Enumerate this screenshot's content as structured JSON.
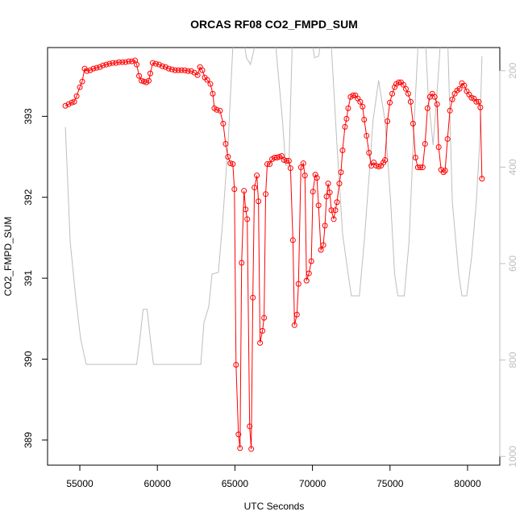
{
  "chart_data": {
    "type": "line",
    "title": "ORCAS RF08 CO2_FMPD_SUM",
    "x_label": "UTC Seconds",
    "y_label": "CO2_FMPD_SUM",
    "xlim": [
      52920,
      82080
    ],
    "ylim": [
      388.69,
      393.85
    ],
    "y2lim": [
      1018,
      152
    ],
    "xticks": [
      55000,
      60000,
      65000,
      70000,
      75000,
      80000
    ],
    "yticks": [
      389,
      390,
      391,
      392,
      393
    ],
    "y2ticks": [
      200,
      400,
      600,
      800,
      1000
    ],
    "series": [
      {
        "color": "#ff0000",
        "markers": true,
        "x": [
          54070,
          54277,
          54483,
          54638,
          54793,
          55000,
          55155,
          55310,
          55465,
          55671,
          55878,
          56085,
          56291,
          56498,
          56704,
          56911,
          57118,
          57324,
          57531,
          57737,
          57944,
          58151,
          58357,
          58564,
          58667,
          58822,
          58977,
          59132,
          59287,
          59442,
          59545,
          59700,
          59907,
          60113,
          60320,
          60526,
          60733,
          60940,
          61146,
          61353,
          61559,
          61766,
          61972,
          62179,
          62386,
          62592,
          62747,
          62902,
          63057,
          63213,
          63419,
          63574,
          63677,
          63832,
          64039,
          64245,
          64400,
          64555,
          64710,
          64865,
          64968,
          65072,
          65227,
          65330,
          65433,
          65588,
          65691,
          65795,
          65950,
          66053,
          66156,
          66260,
          66415,
          66518,
          66621,
          66776,
          66880,
          66983,
          67086,
          67241,
          67396,
          67551,
          67706,
          67861,
          68016,
          68171,
          68326,
          68481,
          68584,
          68739,
          68842,
          68997,
          69100,
          69255,
          69410,
          69514,
          69617,
          69772,
          69927,
          70030,
          70185,
          70288,
          70392,
          70547,
          70702,
          70805,
          70908,
          71012,
          71115,
          71218,
          71373,
          71476,
          71580,
          71735,
          71838,
          71941,
          72096,
          72200,
          72303,
          72458,
          72613,
          72768,
          72922,
          73078,
          73232,
          73336,
          73490,
          73646,
          73800,
          73956,
          74110,
          74266,
          74420,
          74576,
          74679,
          74834,
          74989,
          75144,
          75299,
          75402,
          75557,
          75712,
          75867,
          76022,
          76177,
          76332,
          76486,
          76642,
          76796,
          76952,
          77106,
          77262,
          77416,
          77571,
          77726,
          77881,
          78036,
          78139,
          78294,
          78449,
          78553,
          78708,
          78862,
          79017,
          79172,
          79327,
          79482,
          79637,
          79792,
          79947,
          80102,
          80257,
          80412,
          80567,
          80722,
          80825,
          80928
        ],
        "values": [
          393.13,
          393.15,
          393.17,
          393.18,
          393.25,
          393.36,
          393.43,
          393.59,
          393.56,
          393.57,
          393.59,
          393.6,
          393.61,
          393.63,
          393.64,
          393.65,
          393.66,
          393.66,
          393.67,
          393.67,
          393.67,
          393.68,
          393.68,
          393.69,
          393.64,
          393.5,
          393.44,
          393.43,
          393.42,
          393.44,
          393.53,
          393.66,
          393.65,
          393.64,
          393.62,
          393.61,
          393.59,
          393.58,
          393.57,
          393.57,
          393.57,
          393.57,
          393.56,
          393.56,
          393.54,
          393.51,
          393.61,
          393.57,
          393.48,
          393.45,
          393.4,
          393.28,
          393.1,
          393.08,
          393.07,
          392.91,
          392.66,
          392.5,
          392.42,
          392.41,
          392.1,
          389.93,
          389.07,
          388.9,
          391.19,
          392.08,
          391.85,
          391.73,
          389.17,
          388.89,
          390.76,
          392.12,
          392.27,
          391.95,
          390.2,
          390.35,
          390.51,
          392.04,
          392.41,
          392.41,
          392.47,
          392.49,
          392.49,
          392.5,
          392.51,
          392.46,
          392.45,
          392.45,
          392.36,
          391.47,
          390.42,
          390.55,
          390.93,
          392.37,
          392.42,
          392.27,
          390.97,
          391.06,
          391.21,
          392.07,
          392.28,
          392.24,
          391.9,
          391.35,
          391.41,
          391.65,
          392.01,
          392.17,
          392.06,
          391.84,
          391.73,
          391.84,
          391.94,
          392.17,
          392.31,
          392.58,
          392.87,
          392.97,
          393.1,
          393.24,
          393.26,
          393.26,
          393.22,
          393.18,
          393.12,
          392.96,
          392.76,
          392.55,
          392.39,
          392.43,
          392.39,
          392.38,
          392.39,
          392.43,
          392.46,
          392.94,
          393.17,
          393.28,
          393.36,
          393.4,
          393.42,
          393.42,
          393.39,
          393.34,
          393.28,
          393.18,
          392.91,
          392.49,
          392.37,
          392.37,
          392.37,
          392.66,
          393.1,
          393.24,
          393.28,
          393.24,
          393.15,
          392.62,
          392.34,
          392.31,
          392.33,
          392.72,
          393.07,
          393.21,
          393.28,
          393.32,
          393.34,
          393.41,
          393.38,
          393.31,
          393.27,
          393.23,
          393.22,
          393.18,
          393.18,
          393.11,
          392.23
        ]
      },
      {
        "color": "#bebebe",
        "axis": "y2",
        "markers": false,
        "x": [
          54070,
          54380,
          54742,
          55052,
          55413,
          58667,
          58874,
          59080,
          59339,
          59545,
          59752,
          62799,
          63006,
          63316,
          63522,
          63936,
          64194,
          64555,
          64865,
          65072,
          65485,
          65743,
          66001,
          66260,
          66518,
          67551,
          68068,
          68274,
          68481,
          68687,
          68842,
          69875,
          70133,
          70392,
          70650,
          71166,
          71580,
          71941,
          72303,
          72509,
          73026,
          73336,
          73646,
          73904,
          74266,
          74679,
          75040,
          75299,
          75505,
          75918,
          76228,
          76539,
          76848,
          77262,
          77468,
          77778,
          78087,
          78294,
          78707,
          79017,
          79430,
          79637,
          79947,
          80257,
          80567,
          80774,
          80928
        ],
        "values": [
          317,
          555,
          672,
          756,
          809,
          809,
          756,
          695,
          695,
          756,
          809,
          809,
          722,
          689,
          622,
          618,
          520,
          354,
          151,
          119,
          119,
          173,
          187,
          153,
          119,
          119,
          304,
          396,
          396,
          153,
          119,
          119,
          173,
          170,
          119,
          119,
          354,
          538,
          622,
          667,
          667,
          555,
          421,
          304,
          220,
          304,
          471,
          622,
          667,
          667,
          555,
          320,
          119,
          119,
          254,
          354,
          220,
          119,
          119,
          471,
          622,
          667,
          667,
          588,
          471,
          354,
          170
        ]
      }
    ]
  }
}
